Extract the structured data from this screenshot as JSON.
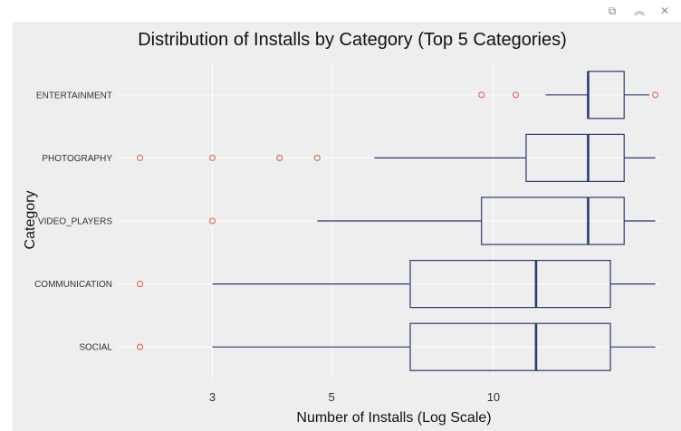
{
  "toolbar": {
    "buttons": [
      {
        "name": "copy-icon",
        "glyph": "⧉"
      },
      {
        "name": "collapse-icon",
        "glyph": "︽"
      },
      {
        "name": "close-icon",
        "glyph": "✕"
      }
    ]
  },
  "colors": {
    "box": "#2b3a73",
    "outlier": "#e0605a",
    "panel": "#eeeeee",
    "grid": "#ffffff"
  },
  "chart_data": {
    "type": "boxplot",
    "title": "Distribution of Installs by Category (Top 5 Categories)",
    "xlabel": "Number of Installs (Log Scale)",
    "ylabel": "Category",
    "x_scale": "log",
    "x_ticks": [
      3,
      5,
      10
    ],
    "x_tick_labels": [
      "3",
      "5",
      "10"
    ],
    "xlim": [
      2.0,
      20.5
    ],
    "grid": true,
    "categories": [
      "ENTERTAINMENT",
      "PHOTOGRAPHY",
      "VIDEO_PLAYERS",
      "COMMUNICATION",
      "SOCIAL"
    ],
    "boxes": [
      {
        "category": "ENTERTAINMENT",
        "whisker_low": 12.5,
        "q1": 15.0,
        "median": 15.0,
        "q3": 17.5,
        "whisker_high": 19.5,
        "outliers": [
          9.5,
          11.0,
          20.0
        ]
      },
      {
        "category": "PHOTOGRAPHY",
        "whisker_low": 6.0,
        "q1": 11.5,
        "median": 15.0,
        "q3": 17.5,
        "whisker_high": 20.0,
        "outliers": [
          2.2,
          3.0,
          4.0,
          4.7
        ]
      },
      {
        "category": "VIDEO_PLAYERS",
        "whisker_low": 4.7,
        "q1": 9.5,
        "median": 15.0,
        "q3": 17.5,
        "whisker_high": 20.0,
        "outliers": [
          3.0
        ]
      },
      {
        "category": "COMMUNICATION",
        "whisker_low": 3.0,
        "q1": 7.0,
        "median": 12.0,
        "q3": 16.5,
        "whisker_high": 20.0,
        "outliers": [
          2.2
        ]
      },
      {
        "category": "SOCIAL",
        "whisker_low": 3.0,
        "q1": 7.0,
        "median": 12.0,
        "q3": 16.5,
        "whisker_high": 20.0,
        "outliers": [
          2.2
        ]
      }
    ]
  }
}
